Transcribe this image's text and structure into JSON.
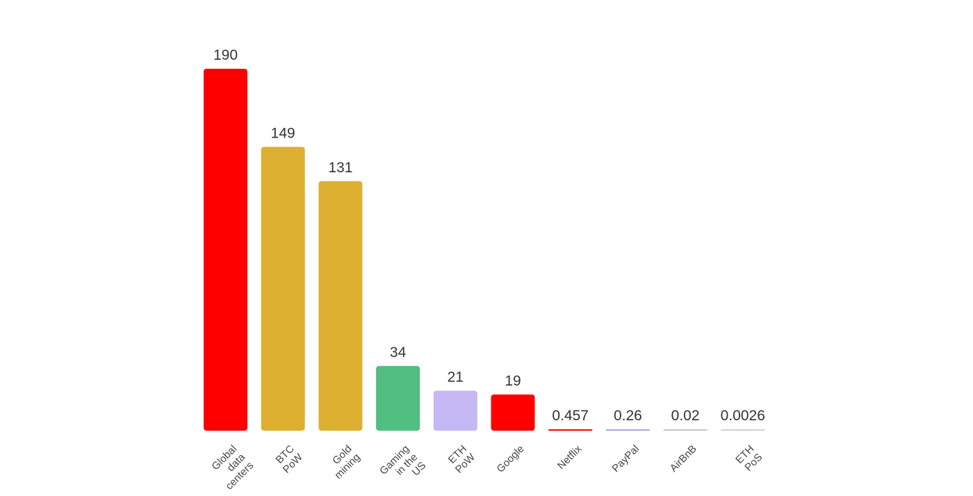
{
  "chart_data": {
    "type": "bar",
    "categories": [
      [
        "Global",
        "data",
        "centers"
      ],
      [
        "BTC",
        "PoW"
      ],
      [
        "Gold",
        "mining"
      ],
      [
        "Gaming",
        "in the",
        "US"
      ],
      [
        "ETH",
        "PoW"
      ],
      [
        "Google"
      ],
      [
        "Netflix"
      ],
      [
        "PayPal"
      ],
      [
        "AirBnB"
      ],
      [
        "ETH",
        "PoS"
      ]
    ],
    "values": [
      190,
      149,
      131,
      34,
      21,
      19,
      0.457,
      0.26,
      0.02,
      0.0026
    ],
    "value_labels": [
      "190",
      "149",
      "131",
      "34",
      "21",
      "19",
      "0.457",
      "0.26",
      "0.02",
      "0.0026"
    ],
    "colors": [
      "#ff0000",
      "#ddb031",
      "#ddb031",
      "#52be80",
      "#c5b8f5",
      "#ff0000",
      "#ff0000",
      "#a9a4e0",
      "#d4bfc6",
      "#cfcfdc"
    ],
    "title": "",
    "xlabel": "",
    "ylabel": "",
    "ylim": [
      0,
      190
    ],
    "grid": false,
    "legend": "none"
  }
}
